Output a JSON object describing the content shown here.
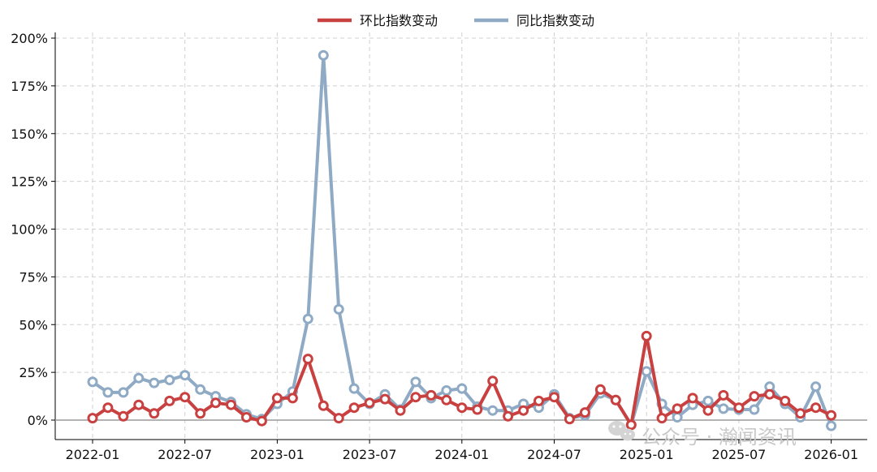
{
  "chart_data": {
    "type": "line",
    "title": "",
    "xlabel": "",
    "ylabel": "",
    "ylim": [
      -0.1,
      2.0
    ],
    "y_unit": "percent",
    "yticks": [
      "0%",
      "25%",
      "50%",
      "75%",
      "100%",
      "125%",
      "150%",
      "175%",
      "200%"
    ],
    "xticks": [
      "2022-01",
      "2022-07",
      "2023-01",
      "2023-07",
      "2024-01",
      "2024-07",
      "2025-01",
      "2025-07",
      "2026-01"
    ],
    "grid": true,
    "legend_position": "top-center",
    "x": [
      "2022-01",
      "2022-02",
      "2022-03",
      "2022-04",
      "2022-05",
      "2022-06",
      "2022-07",
      "2022-08",
      "2022-09",
      "2022-10",
      "2022-11",
      "2022-12",
      "2023-01",
      "2023-02",
      "2023-03",
      "2023-04",
      "2023-05",
      "2023-06",
      "2023-07",
      "2023-08",
      "2023-09",
      "2023-10",
      "2023-11",
      "2023-12",
      "2024-01",
      "2024-02",
      "2024-03",
      "2024-04",
      "2024-05",
      "2024-06",
      "2024-07",
      "2024-08",
      "2024-09",
      "2024-10",
      "2024-11",
      "2024-12",
      "2025-01",
      "2025-02",
      "2025-03",
      "2025-04",
      "2025-05",
      "2025-06",
      "2025-07",
      "2025-08",
      "2025-09",
      "2025-10",
      "2025-11",
      "2025-12",
      "2026-01"
    ],
    "series": [
      {
        "name": "环比指数变动",
        "color": "#c94040",
        "values": [
          0.01,
          0.065,
          0.02,
          0.08,
          0.035,
          0.1,
          0.12,
          0.035,
          0.09,
          0.08,
          0.015,
          -0.005,
          0.115,
          0.115,
          0.32,
          0.075,
          0.01,
          0.065,
          0.09,
          0.11,
          0.05,
          0.12,
          0.13,
          0.105,
          0.065,
          0.055,
          0.205,
          0.02,
          0.05,
          0.1,
          0.12,
          0.005,
          0.04,
          0.16,
          0.105,
          -0.025,
          0.44,
          0.01,
          0.06,
          0.115,
          0.05,
          0.13,
          0.065,
          0.125,
          0.135,
          0.1,
          0.035,
          0.065,
          0.025
        ]
      },
      {
        "name": "同比指数变动",
        "color": "#8faac4",
        "values": [
          0.2,
          0.145,
          0.145,
          0.22,
          0.195,
          0.21,
          0.235,
          0.16,
          0.125,
          0.095,
          0.03,
          0.005,
          0.085,
          0.15,
          0.53,
          1.91,
          0.58,
          0.165,
          0.085,
          0.135,
          0.055,
          0.2,
          0.115,
          0.155,
          0.165,
          0.07,
          0.05,
          0.05,
          0.085,
          0.065,
          0.135,
          0.01,
          0.025,
          0.14,
          0.105,
          -0.025,
          0.255,
          0.085,
          0.015,
          0.08,
          0.1,
          0.06,
          0.055,
          0.055,
          0.175,
          0.085,
          0.015,
          0.175,
          -0.03
        ]
      }
    ]
  },
  "legend": {
    "items": [
      {
        "label": "环比指数变动",
        "color": "#c94040"
      },
      {
        "label": "同比指数变动",
        "color": "#8faac4"
      }
    ]
  },
  "watermark": {
    "text": "公众号 · 瀚闻资讯",
    "icon": "wechat-icon"
  }
}
